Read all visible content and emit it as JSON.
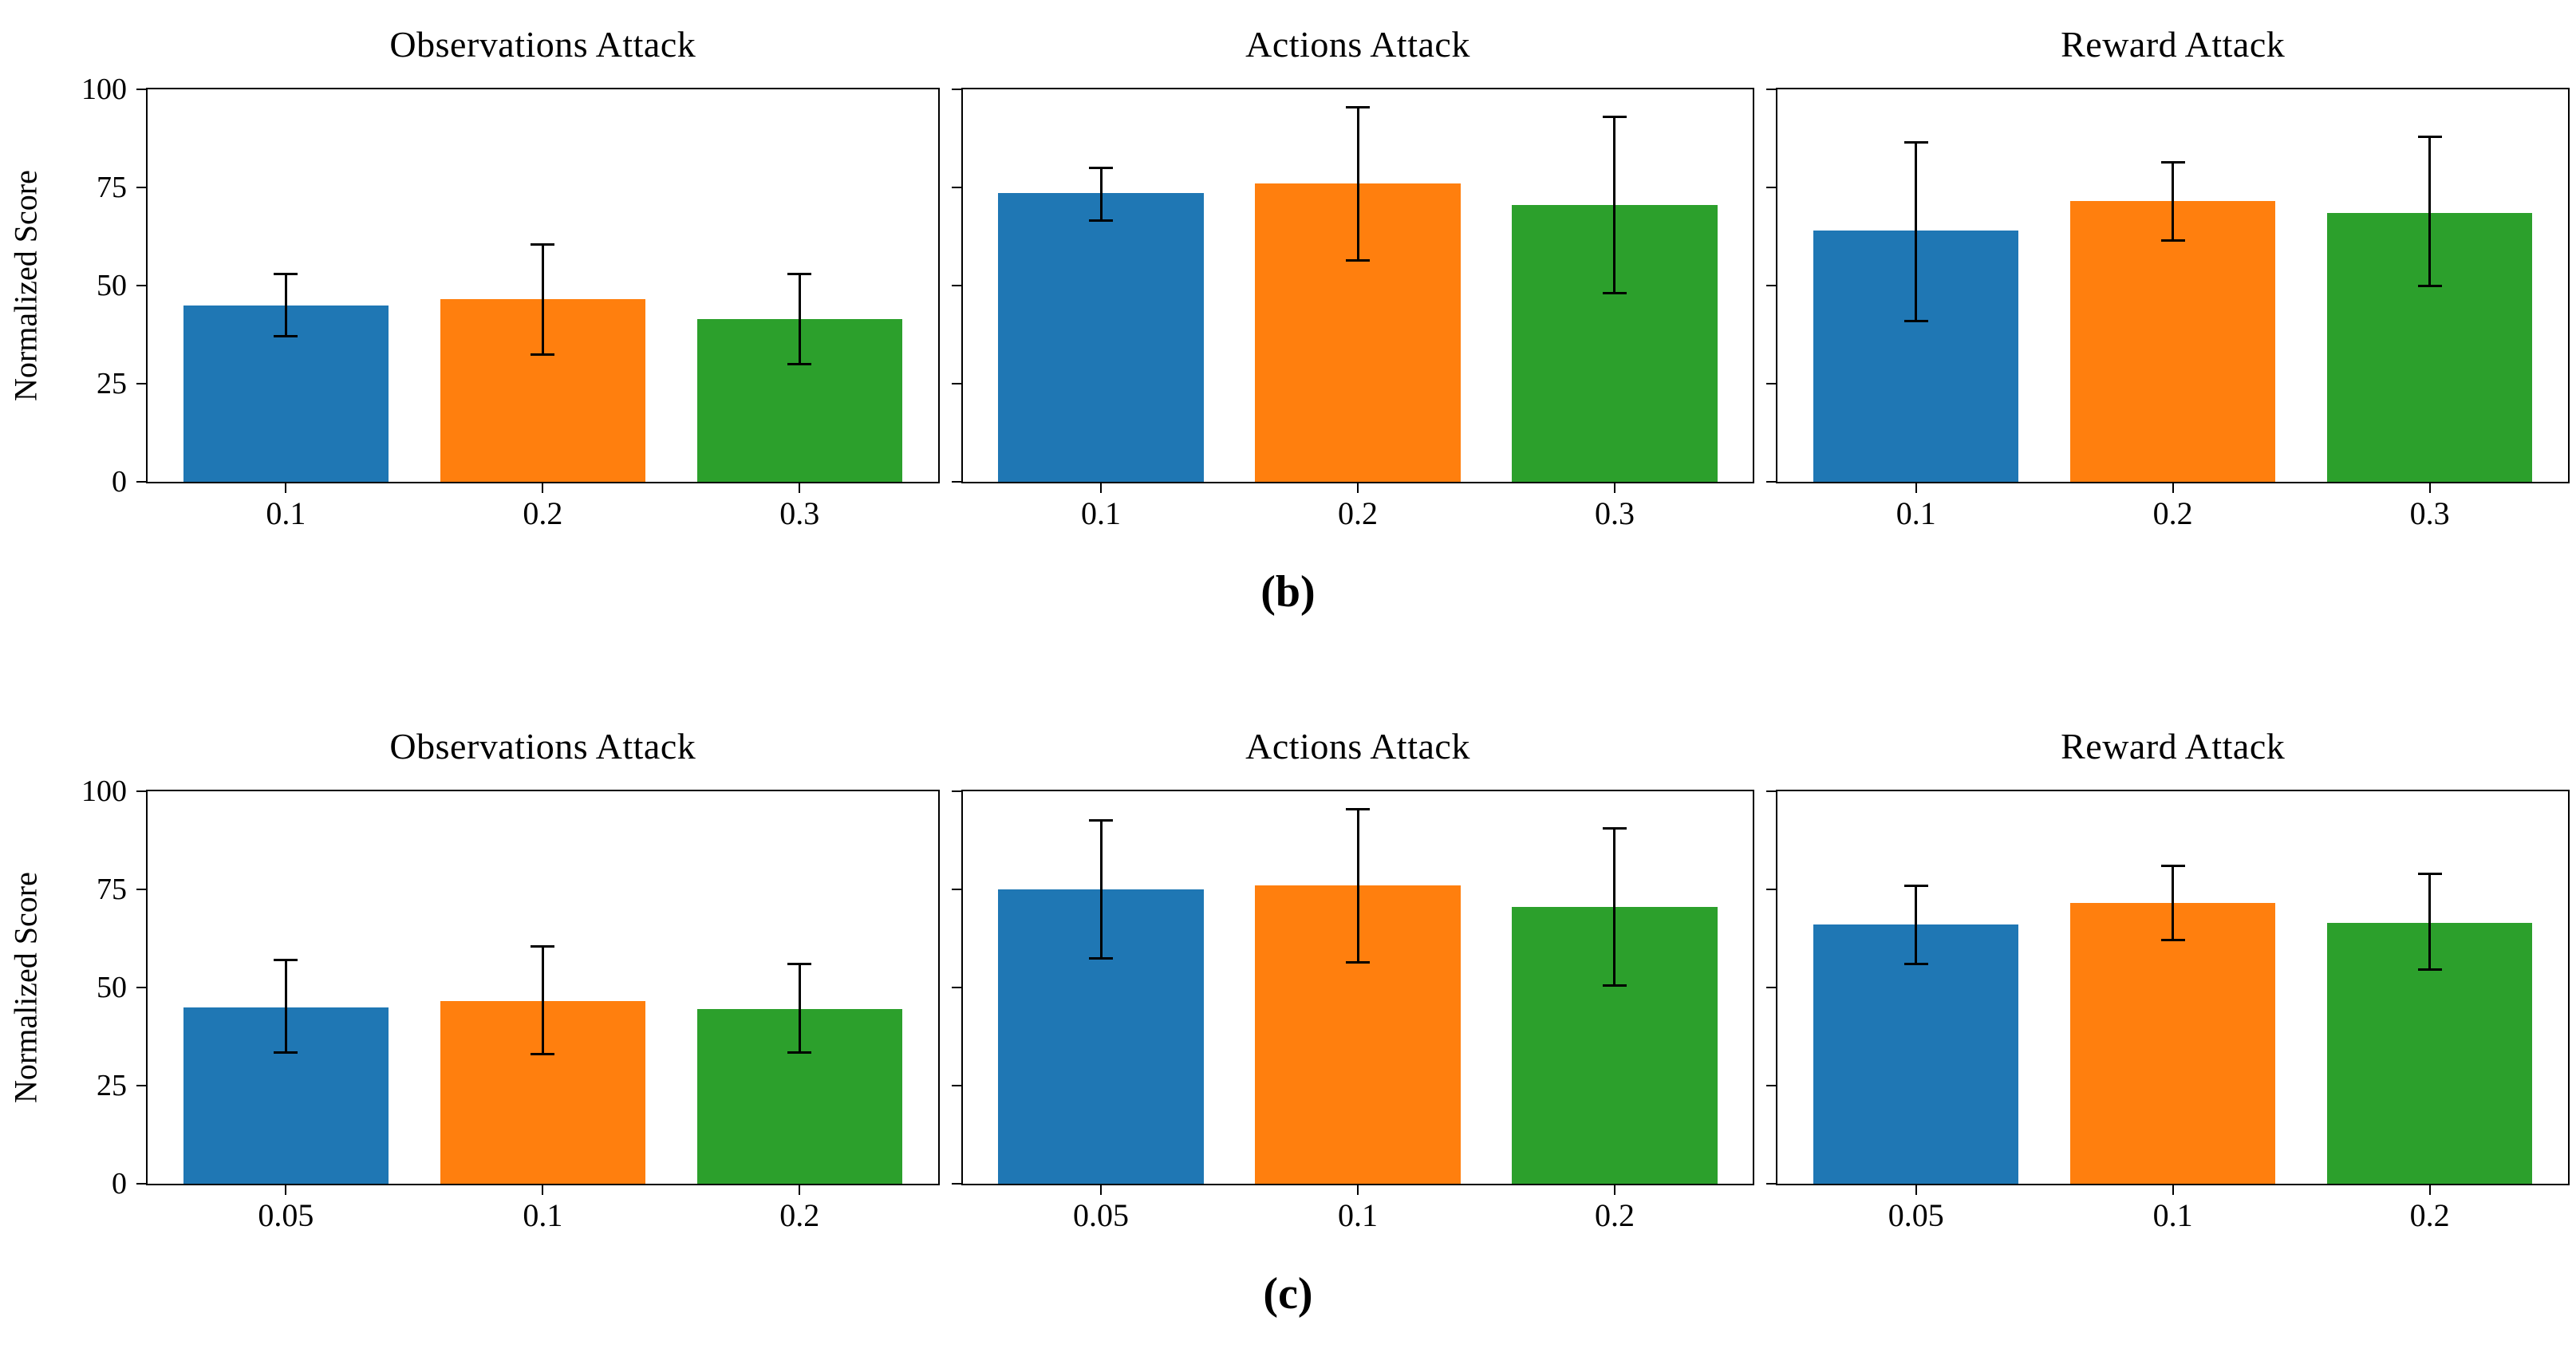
{
  "figure": {
    "rows": [
      {
        "caption": "(b)"
      },
      {
        "caption": "(c)"
      }
    ],
    "colors": {
      "bar_series": [
        "#1f77b4",
        "#ff7f0e",
        "#2ca02c"
      ],
      "axis": "#000000",
      "error_bar": "#000000",
      "background": "#ffffff"
    }
  },
  "chart_data": [
    {
      "type": "bar",
      "row": "b",
      "title": "Observations Attack",
      "xlabel": "",
      "ylabel": "Normalized Score",
      "ylim": [
        0,
        100
      ],
      "yticks": [
        0,
        25,
        50,
        75,
        100
      ],
      "grid": false,
      "legend": "none",
      "categories": [
        "0.1",
        "0.2",
        "0.3"
      ],
      "values": [
        45,
        46.5,
        41.5
      ],
      "error_low": [
        37,
        32.5,
        30
      ],
      "error_high": [
        53,
        60.5,
        53
      ]
    },
    {
      "type": "bar",
      "row": "b",
      "title": "Actions Attack",
      "xlabel": "",
      "ylabel": "Normalized Score",
      "ylim": [
        0,
        100
      ],
      "yticks": [
        0,
        25,
        50,
        75,
        100
      ],
      "grid": false,
      "legend": "none",
      "categories": [
        "0.1",
        "0.2",
        "0.3"
      ],
      "values": [
        73.5,
        76,
        70.5
      ],
      "error_low": [
        66.5,
        56.5,
        48
      ],
      "error_high": [
        80,
        95.5,
        93
      ]
    },
    {
      "type": "bar",
      "row": "b",
      "title": "Reward Attack",
      "xlabel": "",
      "ylabel": "Normalized Score",
      "ylim": [
        0,
        100
      ],
      "yticks": [
        0,
        25,
        50,
        75,
        100
      ],
      "grid": false,
      "legend": "none",
      "categories": [
        "0.1",
        "0.2",
        "0.3"
      ],
      "values": [
        64,
        71.5,
        68.5
      ],
      "error_low": [
        41,
        61.5,
        50
      ],
      "error_high": [
        86.5,
        81.5,
        88
      ]
    },
    {
      "type": "bar",
      "row": "c",
      "title": "Observations Attack",
      "xlabel": "",
      "ylabel": "Normalized Score",
      "ylim": [
        0,
        100
      ],
      "yticks": [
        0,
        25,
        50,
        75,
        100
      ],
      "grid": false,
      "legend": "none",
      "categories": [
        "0.05",
        "0.1",
        "0.2"
      ],
      "values": [
        45,
        46.5,
        44.5
      ],
      "error_low": [
        33.5,
        33,
        33.5
      ],
      "error_high": [
        57,
        60.5,
        56
      ]
    },
    {
      "type": "bar",
      "row": "c",
      "title": "Actions Attack",
      "xlabel": "",
      "ylabel": "Normalized Score",
      "ylim": [
        0,
        100
      ],
      "yticks": [
        0,
        25,
        50,
        75,
        100
      ],
      "grid": false,
      "legend": "none",
      "categories": [
        "0.05",
        "0.1",
        "0.2"
      ],
      "values": [
        75,
        76,
        70.5
      ],
      "error_low": [
        57.5,
        56.5,
        50.5
      ],
      "error_high": [
        92.5,
        95.5,
        90.5
      ]
    },
    {
      "type": "bar",
      "row": "c",
      "title": "Reward Attack",
      "xlabel": "",
      "ylabel": "Normalized Score",
      "ylim": [
        0,
        100
      ],
      "yticks": [
        0,
        25,
        50,
        75,
        100
      ],
      "grid": false,
      "legend": "none",
      "categories": [
        "0.05",
        "0.1",
        "0.2"
      ],
      "values": [
        66,
        71.5,
        66.5
      ],
      "error_low": [
        56,
        62,
        54.5
      ],
      "error_high": [
        76,
        81,
        79
      ]
    }
  ]
}
